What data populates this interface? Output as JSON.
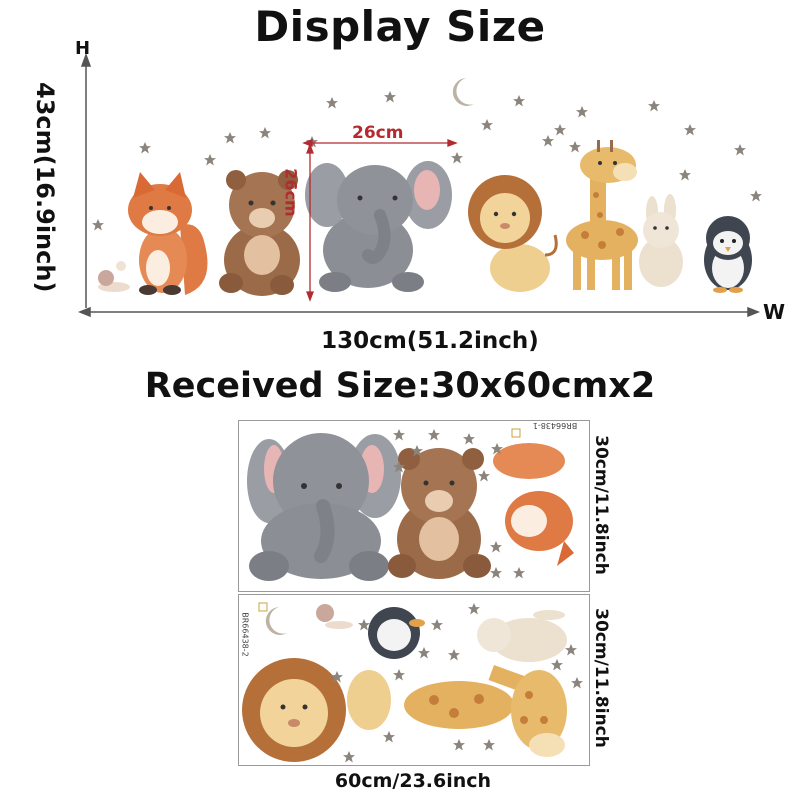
{
  "header": {
    "title": "Display Size",
    "subtitle": "Received Size:30x60cmx2"
  },
  "display": {
    "height_axis_label": "H",
    "width_axis_label": "W",
    "height_dim": "43cm(16.9inch)",
    "width_dim": "130cm(51.2inch)",
    "elephant_width": "26cm",
    "elephant_height": "26cm"
  },
  "sheets": {
    "sheet1_code": "BR66438-1",
    "sheet2_code": "BR66438-2",
    "sheet1_height": "30cm/11.8inch",
    "sheet2_height": "30cm/11.8inch",
    "width_dim": "60cm/23.6inch"
  },
  "colors": {
    "dimension_red": "#b32b30",
    "fox": "#e07a45",
    "bear": "#9b6a48",
    "elephant": "#8b8e95",
    "lion_mane": "#b5703a",
    "lion_face": "#f2d49a",
    "giraffe": "#e3b160",
    "bunny": "#ece0cf",
    "penguin": "#3f4650",
    "star": "#8a847c"
  }
}
